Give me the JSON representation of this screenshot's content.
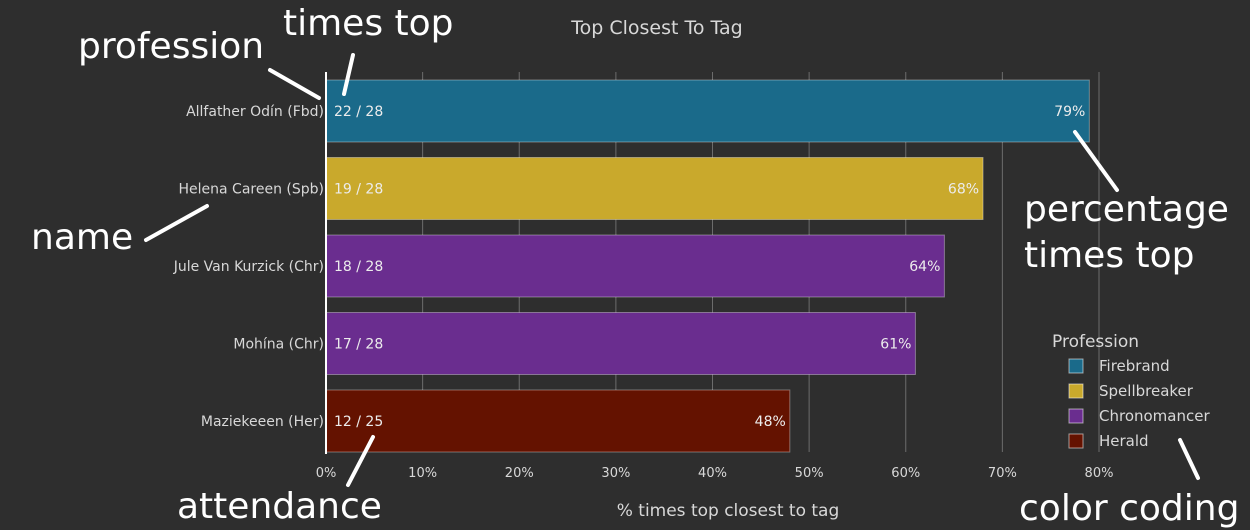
{
  "colors": {
    "background": "#2e2e2e",
    "grid": "#6c6c6c",
    "axis": "#ffffff",
    "text": "#d8d8d8",
    "annotation": "#ffffff"
  },
  "chart_data": {
    "type": "bar",
    "orientation": "horizontal",
    "title": "Top Closest To Tag",
    "xlabel": "% times top closest to tag",
    "ylabel": "",
    "xlim": [
      0,
      80
    ],
    "xticks": [
      0,
      10,
      20,
      30,
      40,
      50,
      60,
      70,
      80
    ],
    "xtick_labels": [
      "0%",
      "10%",
      "20%",
      "30%",
      "40%",
      "50%",
      "60%",
      "70%",
      "80%"
    ],
    "grid": true,
    "legend_title": "Profession",
    "legend_position": "right",
    "legend": [
      {
        "name": "Firebrand",
        "color": "#1a6a8a"
      },
      {
        "name": "Spellbreaker",
        "color": "#c9a92c"
      },
      {
        "name": "Chronomancer",
        "color": "#6a2d8f"
      },
      {
        "name": "Herald",
        "color": "#641200"
      }
    ],
    "bars": [
      {
        "category": "Allfather Odín (Fbd)",
        "value": 79,
        "value_label": "79%",
        "count_label": "22 / 28",
        "profession": "Firebrand",
        "color": "#1a6a8a"
      },
      {
        "category": "Helena Careen (Spb)",
        "value": 68,
        "value_label": "68%",
        "count_label": "19 / 28",
        "profession": "Spellbreaker",
        "color": "#c9a92c"
      },
      {
        "category": "Jule Van Kurzick (Chr)",
        "value": 64,
        "value_label": "64%",
        "count_label": "18 / 28",
        "profession": "Chronomancer",
        "color": "#6a2d8f"
      },
      {
        "category": "Mohína (Chr)",
        "value": 61,
        "value_label": "61%",
        "count_label": "17 / 28",
        "profession": "Chronomancer",
        "color": "#6a2d8f"
      },
      {
        "category": "Maziekeeen (Her)",
        "value": 48,
        "value_label": "48%",
        "count_label": "12 / 25",
        "profession": "Herald",
        "color": "#641200"
      }
    ]
  },
  "annotations": {
    "profession": "profession",
    "times_top": "times top",
    "name": "name",
    "percentage_line1": "percentage",
    "percentage_line2": "times top",
    "attendance": "attendance",
    "color_coding": "color coding"
  }
}
